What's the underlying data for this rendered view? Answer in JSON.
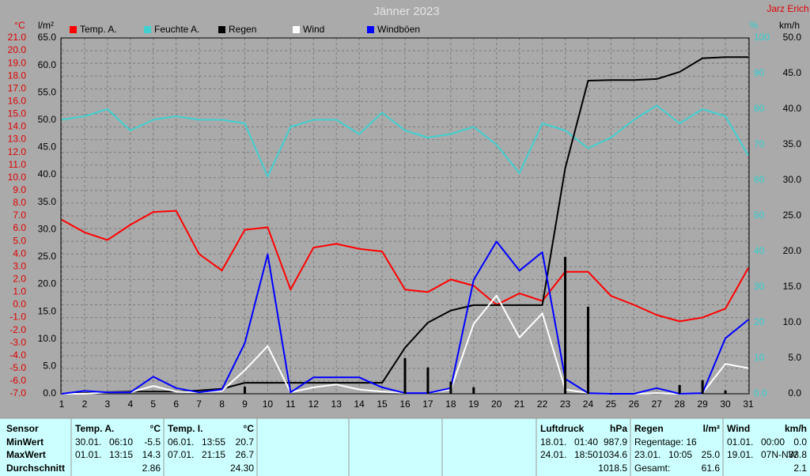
{
  "chart_data": {
    "type": "line",
    "title": "Jänner 2023",
    "author": "Jarz Erich",
    "categories": [
      "1",
      "2",
      "3",
      "4",
      "5",
      "6",
      "7",
      "8",
      "9",
      "10",
      "11",
      "12",
      "13",
      "14",
      "15",
      "16",
      "17",
      "18",
      "19",
      "20",
      "21",
      "22",
      "23",
      "24",
      "25",
      "26",
      "27",
      "28",
      "29",
      "30",
      "31"
    ],
    "ylabel": "°C",
    "y2label": "l/m²",
    "y3label": "%",
    "y4label": "km/h",
    "ylim": [
      -7,
      21
    ],
    "yticks": [
      {
        "value": -7,
        "label": "-7.0"
      },
      {
        "value": -6,
        "label": "-6.0"
      },
      {
        "value": -5,
        "label": "-5.0"
      },
      {
        "value": -4,
        "label": "-4.0"
      },
      {
        "value": -3,
        "label": "-3.0"
      },
      {
        "value": -2,
        "label": "-2.0"
      },
      {
        "value": -1,
        "label": "-1.0"
      },
      {
        "value": 0,
        "label": "0.0"
      },
      {
        "value": 1,
        "label": "1.0"
      },
      {
        "value": 2,
        "label": "2.0"
      },
      {
        "value": 3,
        "label": "3.0"
      },
      {
        "value": 4,
        "label": "4.0"
      },
      {
        "value": 5,
        "label": "5.0"
      },
      {
        "value": 6,
        "label": "6.0"
      },
      {
        "value": 7,
        "label": "7.0"
      },
      {
        "value": 8,
        "label": "8.0"
      },
      {
        "value": 9,
        "label": "9.0"
      },
      {
        "value": 10,
        "label": "10.0"
      },
      {
        "value": 11,
        "label": "11.0"
      },
      {
        "value": 12,
        "label": "12.0"
      },
      {
        "value": 13,
        "label": "13.0"
      },
      {
        "value": 14,
        "label": "14.0"
      },
      {
        "value": 15,
        "label": "15.0"
      },
      {
        "value": 16,
        "label": "16.0"
      },
      {
        "value": 17,
        "label": "17.0"
      },
      {
        "value": 18,
        "label": "18.0"
      },
      {
        "value": 19,
        "label": "19.0"
      },
      {
        "value": 20,
        "label": "20.0"
      },
      {
        "value": 21,
        "label": "21.0"
      }
    ],
    "y2lim": [
      0,
      65
    ],
    "y2ticks": [
      {
        "value": 0,
        "label": "0.0"
      },
      {
        "value": 5,
        "label": "5.0"
      },
      {
        "value": 10,
        "label": "10.0"
      },
      {
        "value": 15,
        "label": "15.0"
      },
      {
        "value": 20,
        "label": "20.0"
      },
      {
        "value": 25,
        "label": "25.0"
      },
      {
        "value": 30,
        "label": "30.0"
      },
      {
        "value": 35,
        "label": "35.0"
      },
      {
        "value": 40,
        "label": "40.0"
      },
      {
        "value": 45,
        "label": "45.0"
      },
      {
        "value": 50,
        "label": "50.0"
      },
      {
        "value": 55,
        "label": "55.0"
      },
      {
        "value": 60,
        "label": "60.0"
      },
      {
        "value": 65,
        "label": "65.0"
      }
    ],
    "y3lim": [
      0,
      100
    ],
    "y3ticks": [
      {
        "value": 0,
        "label": "0.0"
      },
      10,
      20,
      30,
      40,
      50,
      60,
      70,
      80,
      90,
      100
    ],
    "y4lim": [
      0,
      50
    ],
    "y4ticks": [
      {
        "value": 0,
        "label": "0.0"
      },
      {
        "value": 5,
        "label": "5.0"
      },
      {
        "value": 10,
        "label": "10.0"
      },
      {
        "value": 15,
        "label": "15.0"
      },
      {
        "value": 20,
        "label": "20.0"
      },
      {
        "value": 25,
        "label": "25.0"
      },
      {
        "value": 30,
        "label": "30.0"
      },
      {
        "value": 35,
        "label": "35.0"
      },
      {
        "value": 40,
        "label": "40.0"
      },
      {
        "value": 45,
        "label": "45.0"
      },
      {
        "value": 50,
        "label": "50.0"
      }
    ],
    "grid": true,
    "series": [
      {
        "name": "Temp. A.",
        "color": "#ff0000",
        "axis": "y",
        "values": [
          6.7,
          5.7,
          5.1,
          6.3,
          7.3,
          7.4,
          4.0,
          2.7,
          5.9,
          6.1,
          1.2,
          4.5,
          4.8,
          4.4,
          4.2,
          1.2,
          1.0,
          2.0,
          1.5,
          0.0,
          0.9,
          0.3,
          2.6,
          2.6,
          0.7,
          0.0,
          -0.8,
          -1.3,
          -1.0,
          -0.3,
          2.9
        ]
      },
      {
        "name": "Feuchte A.",
        "color": "#40d0d0",
        "axis": "y3",
        "values": [
          77,
          78,
          80,
          74,
          77,
          78,
          77,
          77,
          76,
          61,
          75,
          77,
          77,
          73,
          79,
          74,
          72,
          73,
          75,
          70,
          62,
          76,
          74,
          69,
          72,
          77,
          81,
          76,
          80,
          78,
          67
        ]
      },
      {
        "name": "Regen",
        "color": "#000000",
        "axis": "y2",
        "values": [
          0,
          0.1,
          0.3,
          0.4,
          0.4,
          0.4,
          0.6,
          0.9,
          2.0,
          2.0,
          2.0,
          2.0,
          2.0,
          2.0,
          2.0,
          8.4,
          13.0,
          15.2,
          16.2,
          16.2,
          16.2,
          16.2,
          41.2,
          57.2,
          57.3,
          57.3,
          57.5,
          58.8,
          61.3,
          61.5,
          61.5
        ]
      },
      {
        "name": "Wind",
        "color": "#ffffff",
        "axis": "y4",
        "values": [
          0,
          0,
          0.2,
          0.2,
          1.1,
          0.3,
          0.2,
          0.4,
          3.3,
          6.7,
          0.2,
          0.9,
          1.3,
          0.6,
          0.3,
          0.1,
          0.1,
          0.6,
          9.8,
          13.8,
          7.9,
          11.3,
          0.6,
          0.1,
          0,
          0,
          0.1,
          0,
          0.1,
          4.2,
          3.6
        ]
      },
      {
        "name": "Windböen",
        "color": "#0000ff",
        "axis": "y4",
        "values": [
          0,
          0.4,
          0.2,
          0.2,
          2.4,
          0.8,
          0.2,
          0.6,
          7.1,
          19.6,
          0.2,
          2.3,
          2.3,
          2.3,
          0.9,
          0.1,
          0.1,
          0.8,
          16.0,
          21.4,
          17.3,
          19.9,
          2.1,
          0.1,
          0,
          0,
          0.8,
          0,
          0.1,
          7.8,
          10.4
        ]
      },
      {
        "type": "bar",
        "color": "#000000",
        "axis": "y2",
        "values": [
          0,
          0,
          0,
          0,
          0,
          0,
          0,
          0,
          1.3,
          0,
          0,
          0,
          0,
          0,
          0,
          6.5,
          4.8,
          2.2,
          1.2,
          0,
          0,
          0,
          25.0,
          15.9,
          0.1,
          0,
          0,
          1.6,
          2.5,
          0.6,
          0
        ]
      }
    ]
  },
  "stats": {
    "row_labels": {
      "header": "Sensor",
      "min": "MinWert",
      "max": "MaxWert",
      "avg": "Durchschnitt"
    },
    "columns": [
      {
        "title": "Temp. A.",
        "unit": "°C",
        "min": {
          "date": "30.01.",
          "time": "06:10",
          "value": "-5.5"
        },
        "max": {
          "date": "01.01.",
          "time": "13:15",
          "value": "14.3"
        },
        "avg": {
          "value": "2.86"
        }
      },
      {
        "title": "Temp. I.",
        "unit": "°C",
        "min": {
          "date": "06.01.",
          "time": "13:55",
          "value": "20.7"
        },
        "max": {
          "date": "07.01.",
          "time": "21:15",
          "value": "26.7"
        },
        "avg": {
          "value": "24.30"
        }
      },
      {
        "title": "Luftdruck",
        "unit": "hPa",
        "min": {
          "date": "18.01.",
          "time": "01:40",
          "value": "987.9"
        },
        "max": {
          "date": "24.01.",
          "time": "18:50",
          "value": "1034.6"
        },
        "avg": {
          "value": "1018.5"
        }
      },
      {
        "title": "Regen",
        "unit": "l/m²",
        "min": {
          "label": "Regentage: 16"
        },
        "max": {
          "date": "23.01.",
          "time": "10:05",
          "value": "25.0"
        },
        "avg": {
          "label": "Gesamt:",
          "value": "61.6"
        }
      },
      {
        "title": "Wind",
        "unit": "km/h",
        "min": {
          "date": "01.01.",
          "time": "00:00",
          "value": "0.0"
        },
        "max": {
          "date": "19.01.",
          "time": "07N-NW",
          "value": "33.8"
        },
        "avg": {
          "value": "2.1"
        }
      }
    ]
  }
}
